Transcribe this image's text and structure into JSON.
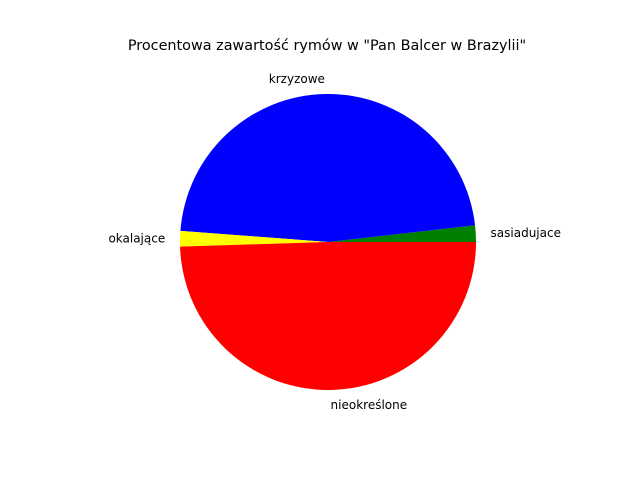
{
  "chart_data": {
    "type": "pie",
    "title": "Procentowa zawartość rymów w \"Pan Balcer w Brazylii\"",
    "labels": [
      "sasiadujace",
      "krzyzowe",
      "okalające",
      "nieokreślone"
    ],
    "values": [
      1.8,
      47.0,
      1.7,
      49.5
    ],
    "colors": [
      "#008000",
      "#0000ff",
      "#ffff00",
      "#ff0000"
    ],
    "start_angle": 0,
    "direction": "counterclockwise",
    "legend": false
  }
}
